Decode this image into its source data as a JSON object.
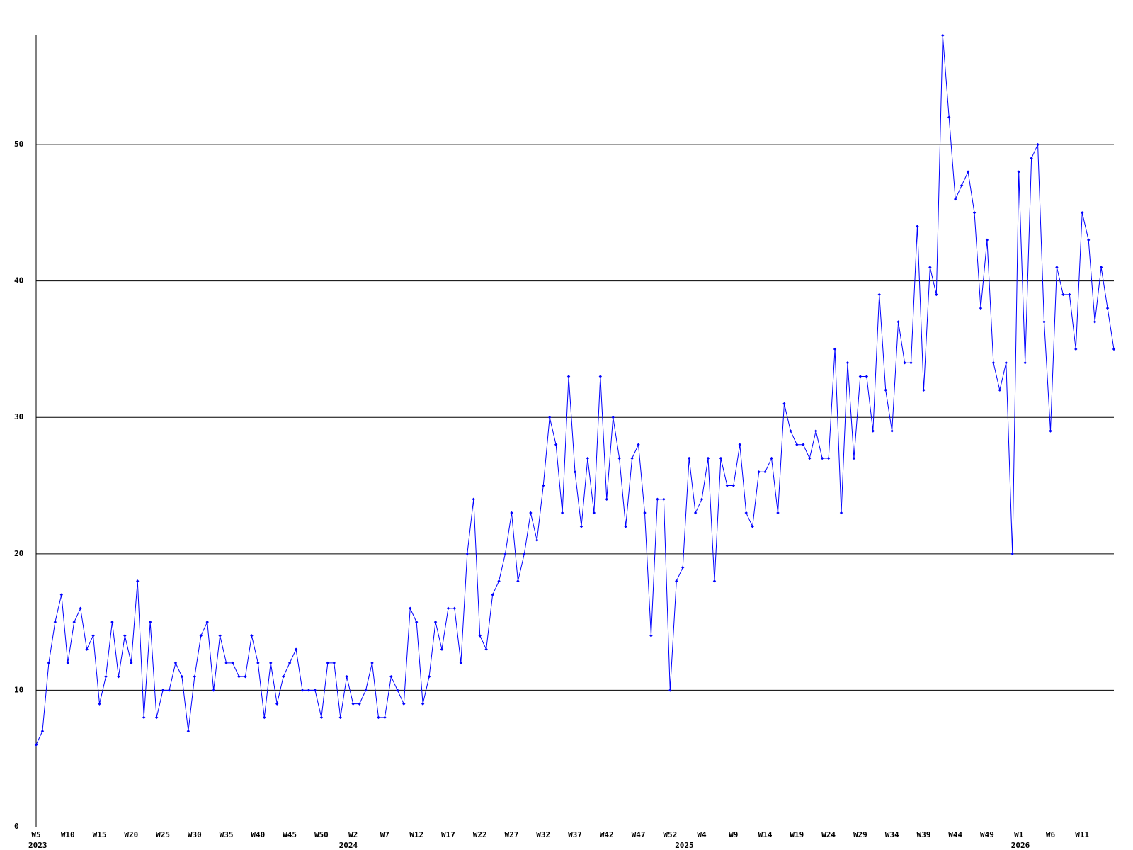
{
  "chart_data": {
    "type": "line",
    "color": "#0000ff",
    "categories": [
      "W5",
      null,
      null,
      null,
      null,
      "W10",
      null,
      null,
      null,
      null,
      "W15",
      null,
      null,
      null,
      null,
      "W20",
      null,
      null,
      null,
      null,
      "W25",
      null,
      null,
      null,
      null,
      "W30",
      null,
      null,
      null,
      null,
      "W35",
      null,
      null,
      null,
      null,
      "W40",
      null,
      null,
      null,
      null,
      "W45",
      null,
      null,
      null,
      null,
      "W50",
      null,
      null,
      null,
      null,
      "W2",
      null,
      null,
      null,
      null,
      "W7",
      null,
      null,
      null,
      null,
      "W12",
      null,
      null,
      null,
      null,
      "W17",
      null,
      null,
      null,
      null,
      "W22",
      null,
      null,
      null,
      null,
      "W27",
      null,
      null,
      null,
      null,
      "W32",
      null,
      null,
      null,
      null,
      "W37",
      null,
      null,
      null,
      null,
      "W42",
      null,
      null,
      null,
      null,
      "W47",
      null,
      null,
      null,
      null,
      "W52",
      null,
      null,
      null,
      null,
      "W4",
      null,
      null,
      null,
      null,
      "W9",
      null,
      null,
      null,
      null,
      "W14",
      null,
      null,
      null,
      null,
      "W19",
      null,
      null,
      null,
      null,
      "W24",
      null,
      null,
      null,
      null,
      "W29",
      null,
      null,
      null,
      null,
      "W34",
      null,
      null,
      null,
      null,
      "W39",
      null,
      null,
      null,
      null,
      "W44",
      null,
      null,
      null,
      null,
      "W49",
      null,
      null,
      null,
      null,
      "W1",
      null,
      null,
      null,
      null,
      "W6",
      null,
      null,
      null,
      null,
      "W11",
      null,
      null,
      null,
      null,
      null
    ],
    "category_years": [
      "2023",
      null,
      null,
      null,
      null,
      null,
      null,
      null,
      null,
      null,
      null,
      null,
      null,
      null,
      null,
      null,
      null,
      null,
      null,
      null,
      null,
      null,
      null,
      null,
      null,
      null,
      null,
      null,
      null,
      null,
      null,
      null,
      null,
      null,
      null,
      null,
      null,
      null,
      null,
      null,
      null,
      null,
      null,
      null,
      null,
      null,
      null,
      null,
      null,
      "2024",
      null,
      null,
      null,
      null,
      null,
      null,
      null,
      null,
      null,
      null,
      null,
      null,
      null,
      null,
      null,
      null,
      null,
      null,
      null,
      null,
      null,
      null,
      null,
      null,
      null,
      null,
      null,
      null,
      null,
      null,
      null,
      null,
      null,
      null,
      null,
      null,
      null,
      null,
      null,
      null,
      null,
      null,
      null,
      null,
      null,
      null,
      null,
      null,
      null,
      null,
      null,
      null,
      "2025",
      null,
      null,
      null,
      null,
      null,
      null,
      null,
      null,
      null,
      null,
      null,
      null,
      null,
      null,
      null,
      null,
      null,
      null,
      null,
      null,
      null,
      null,
      null,
      null,
      null,
      null,
      null,
      null,
      null,
      null,
      null,
      null,
      null,
      null,
      null,
      null,
      null,
      null,
      null,
      null,
      null,
      null,
      null,
      null,
      null,
      null,
      null,
      null,
      null,
      null,
      null,
      null,
      "2026",
      null,
      null,
      null,
      null,
      null,
      null,
      null,
      null,
      null,
      null,
      null,
      null,
      null,
      null,
      null
    ],
    "values": [
      6,
      7,
      12,
      15,
      17,
      12,
      15,
      16,
      13,
      14,
      9,
      11,
      15,
      11,
      14,
      12,
      18,
      8,
      15,
      8,
      10,
      10,
      12,
      11,
      7,
      11,
      14,
      15,
      10,
      14,
      12,
      12,
      11,
      11,
      14,
      12,
      8,
      12,
      9,
      11,
      12,
      13,
      10,
      10,
      10,
      8,
      12,
      12,
      8,
      11,
      9,
      9,
      10,
      12,
      8,
      8,
      11,
      10,
      9,
      16,
      15,
      9,
      11,
      15,
      13,
      16,
      16,
      12,
      20,
      24,
      14,
      13,
      17,
      18,
      20,
      23,
      18,
      20,
      23,
      21,
      25,
      30,
      28,
      23,
      33,
      26,
      22,
      27,
      23,
      33,
      24,
      30,
      27,
      22,
      27,
      28,
      23,
      14,
      24,
      24,
      10,
      18,
      19,
      27,
      23,
      24,
      27,
      18,
      27,
      25,
      25,
      28,
      23,
      22,
      26,
      26,
      27,
      23,
      31,
      29,
      28,
      28,
      27,
      29,
      27,
      27,
      35,
      23,
      34,
      27,
      33,
      33,
      29,
      39,
      32,
      29,
      37,
      34,
      34,
      44,
      32,
      41,
      39,
      58,
      52,
      46,
      47,
      48,
      45,
      38,
      43,
      34,
      32,
      34,
      20,
      48,
      34,
      49,
      50,
      37,
      29,
      41,
      39,
      39,
      35,
      45,
      43,
      37,
      41,
      38,
      35
    ],
    "ylim": [
      0,
      58
    ],
    "yticks": [
      0,
      10,
      20,
      30,
      40,
      50
    ],
    "grid": true
  }
}
